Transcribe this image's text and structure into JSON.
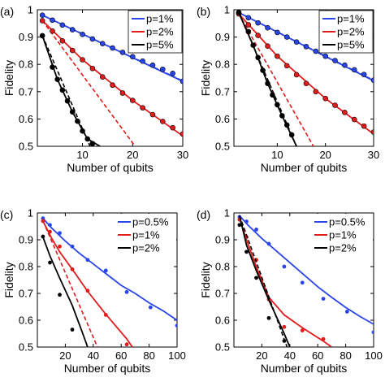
{
  "colors": {
    "blue": "#2a46e8",
    "red": "#e21b1b",
    "black": "#000000"
  },
  "chart_data": [
    {
      "panel_label": "(a)",
      "type": "line",
      "xlabel": "Number of qubits",
      "ylabel": "Fidelity",
      "xlim": [
        1,
        30
      ],
      "ylim": [
        0.5,
        1
      ],
      "xticks": [
        "10",
        "20",
        "30"
      ],
      "yticks": [
        "0.5",
        "0.6",
        "0.7",
        "0.8",
        "0.9",
        "1"
      ],
      "legend": {
        "position": "top-right",
        "entries": [
          "p=1%",
          "p=2%",
          "p=5%"
        ]
      },
      "series": [
        {
          "name": "p=1%",
          "color": "blue",
          "solid": [
            [
              2,
              0.98
            ],
            [
              30,
              0.738
            ]
          ],
          "dashed": [
            [
              2,
              0.98
            ],
            [
              30,
              0.74
            ]
          ],
          "points": [
            [
              2,
              0.98
            ],
            [
              4,
              0.962
            ],
            [
              6,
              0.944
            ],
            [
              8,
              0.927
            ],
            [
              10,
              0.91
            ],
            [
              12,
              0.893
            ],
            [
              14,
              0.876
            ],
            [
              16,
              0.86
            ],
            [
              18,
              0.844
            ],
            [
              20,
              0.828
            ],
            [
              22,
              0.812
            ],
            [
              24,
              0.797
            ],
            [
              26,
              0.782
            ],
            [
              28,
              0.767
            ],
            [
              30,
              0.738
            ]
          ]
        },
        {
          "name": "p=2%",
          "color": "red",
          "solid": [
            [
              2,
              0.96
            ],
            [
              10,
              0.817
            ],
            [
              20,
              0.668
            ],
            [
              30,
              0.538
            ]
          ],
          "dashed": [
            [
              2,
              0.96
            ],
            [
              20.5,
              0.5
            ]
          ],
          "points": [
            [
              2,
              0.96
            ],
            [
              4,
              0.922
            ],
            [
              6,
              0.886
            ],
            [
              8,
              0.851
            ],
            [
              10,
              0.817
            ],
            [
              12,
              0.785
            ],
            [
              14,
              0.754
            ],
            [
              16,
              0.724
            ],
            [
              18,
              0.695
            ],
            [
              20,
              0.668
            ],
            [
              22,
              0.641
            ],
            [
              24,
              0.616
            ],
            [
              26,
              0.591
            ],
            [
              28,
              0.568
            ],
            [
              30,
              0.545
            ]
          ]
        },
        {
          "name": "p=5%",
          "color": "black",
          "solid": [
            [
              2,
              0.905
            ],
            [
              5,
              0.745
            ],
            [
              8,
              0.626
            ],
            [
              11,
              0.527
            ],
            [
              13.5,
              0.5
            ]
          ],
          "dashed": [
            [
              2,
              0.905
            ],
            [
              11.5,
              0.5
            ]
          ],
          "points": [
            [
              2,
              0.905
            ],
            [
              4,
              0.79
            ],
            [
              5,
              0.745
            ],
            [
              6,
              0.706
            ],
            [
              7,
              0.666
            ],
            [
              8,
              0.626
            ],
            [
              9,
              0.592
            ],
            [
              10,
              0.556
            ],
            [
              11,
              0.527
            ],
            [
              12,
              0.51
            ]
          ]
        }
      ]
    },
    {
      "panel_label": "(b)",
      "type": "line",
      "xlabel": "Number of qubits",
      "ylabel": "Fidelity",
      "xlim": [
        1,
        30
      ],
      "ylim": [
        0.5,
        1
      ],
      "xticks": [
        "10",
        "20",
        "30"
      ],
      "yticks": [
        "0.5",
        "0.6",
        "0.7",
        "0.8",
        "0.9",
        "1"
      ],
      "legend": {
        "position": "top-right",
        "entries": [
          "p=1%",
          "p=2%",
          "p=5%"
        ]
      },
      "series": [
        {
          "name": "p=1%",
          "color": "blue",
          "solid": [
            [
              2,
              0.99
            ],
            [
              30,
              0.74
            ]
          ],
          "dashed": [
            [
              2,
              0.99
            ],
            [
              30,
              0.742
            ]
          ],
          "points": [
            [
              2,
              0.99
            ],
            [
              4,
              0.971
            ],
            [
              6,
              0.952
            ],
            [
              8,
              0.934
            ],
            [
              10,
              0.917
            ],
            [
              12,
              0.9
            ],
            [
              14,
              0.882
            ],
            [
              16,
              0.865
            ],
            [
              18,
              0.848
            ],
            [
              20,
              0.83
            ],
            [
              22,
              0.814
            ],
            [
              24,
              0.797
            ],
            [
              26,
              0.78
            ],
            [
              28,
              0.763
            ],
            [
              30,
              0.742
            ]
          ]
        },
        {
          "name": "p=2%",
          "color": "red",
          "solid": [
            [
              2,
              0.985
            ],
            [
              10,
              0.83
            ],
            [
              20,
              0.675
            ],
            [
              30,
              0.545
            ]
          ],
          "dashed": [
            [
              2,
              0.985
            ],
            [
              17.5,
              0.5
            ]
          ],
          "points": [
            [
              2,
              0.985
            ],
            [
              4,
              0.945
            ],
            [
              6,
              0.906
            ],
            [
              8,
              0.867
            ],
            [
              10,
              0.83
            ],
            [
              12,
              0.795
            ],
            [
              14,
              0.762
            ],
            [
              16,
              0.73
            ],
            [
              18,
              0.7
            ],
            [
              20,
              0.675
            ],
            [
              22,
              0.65
            ],
            [
              24,
              0.624
            ],
            [
              26,
              0.598
            ],
            [
              28,
              0.574
            ],
            [
              30,
              0.552
            ]
          ]
        },
        {
          "name": "p=5%",
          "color": "black",
          "solid": [
            [
              2,
              0.99
            ],
            [
              5,
              0.87
            ],
            [
              8,
              0.73
            ],
            [
              11,
              0.612
            ],
            [
              14,
              0.5
            ]
          ],
          "dashed": [
            [
              2,
              0.99
            ],
            [
              14,
              0.5
            ]
          ],
          "points": [
            [
              2,
              0.99
            ],
            [
              4,
              0.92
            ],
            [
              5,
              0.87
            ],
            [
              6,
              0.825
            ],
            [
              7,
              0.778
            ],
            [
              8,
              0.73
            ],
            [
              9,
              0.688
            ],
            [
              10,
              0.652
            ],
            [
              11,
              0.612
            ],
            [
              12,
              0.578
            ],
            [
              13,
              0.542
            ]
          ]
        }
      ]
    },
    {
      "panel_label": "(c)",
      "type": "line",
      "xlabel": "Number of qubits",
      "ylabel": "Fidelity",
      "xlim": [
        0,
        100
      ],
      "ylim": [
        0.5,
        1
      ],
      "xticks": [
        "20",
        "40",
        "60",
        "80",
        "100"
      ],
      "yticks": [
        "0.5",
        "0.6",
        "0.7",
        "0.8",
        "0.9",
        "1"
      ],
      "legend": {
        "position": "top-right",
        "entries": [
          "p=0.5%",
          "p=1%",
          "p=2%"
        ]
      },
      "series": [
        {
          "name": "p=0.5%",
          "color": "blue",
          "solid": [
            [
              4,
              0.98
            ],
            [
              10,
              0.945
            ],
            [
              20,
              0.895
            ],
            [
              30,
              0.85
            ],
            [
              40,
              0.81
            ],
            [
              50,
              0.77
            ],
            [
              60,
              0.73
            ],
            [
              70,
              0.7
            ],
            [
              80,
              0.665
            ],
            [
              90,
              0.635
            ],
            [
              100,
              0.6
            ]
          ],
          "points": [
            [
              4,
              0.98
            ],
            [
              9,
              0.955
            ],
            [
              16,
              0.925
            ],
            [
              25,
              0.875
            ],
            [
              36,
              0.825
            ],
            [
              49,
              0.785
            ],
            [
              64,
              0.705
            ],
            [
              81,
              0.648
            ],
            [
              100,
              0.58
            ]
          ]
        },
        {
          "name": "p=1%",
          "color": "red",
          "solid": [
            [
              4,
              0.97
            ],
            [
              10,
              0.908
            ],
            [
              16,
              0.855
            ],
            [
              25,
              0.79
            ],
            [
              36,
              0.708
            ],
            [
              49,
              0.622
            ],
            [
              64,
              0.53
            ],
            [
              68,
              0.5
            ]
          ],
          "dashed": [
            [
              4,
              0.97
            ],
            [
              43,
              0.5
            ]
          ],
          "points": [
            [
              4,
              0.97
            ],
            [
              9,
              0.93
            ],
            [
              16,
              0.875
            ],
            [
              25,
              0.79
            ],
            [
              36,
              0.71
            ],
            [
              49,
              0.62
            ],
            [
              64,
              0.51
            ]
          ]
        },
        {
          "name": "p=2%",
          "color": "black",
          "solid": [
            [
              4,
              0.91
            ],
            [
              9,
              0.84
            ],
            [
              16,
              0.757
            ],
            [
              25,
              0.655
            ],
            [
              32,
              0.558
            ],
            [
              36,
              0.5
            ]
          ],
          "points": [
            [
              4,
              0.912
            ],
            [
              9,
              0.815
            ],
            [
              16,
              0.695
            ],
            [
              25,
              0.565
            ]
          ]
        }
      ]
    },
    {
      "panel_label": "(d)",
      "type": "line",
      "xlabel": "Number of qubits",
      "ylabel": "Fidelity",
      "xlim": [
        0,
        100
      ],
      "ylim": [
        0.5,
        1
      ],
      "xticks": [
        "20",
        "40",
        "60",
        "80",
        "100"
      ],
      "yticks": [
        "0.5",
        "0.6",
        "0.7",
        "0.8",
        "0.9",
        "1"
      ],
      "legend": {
        "position": "top-right",
        "entries": [
          "p=0.5%",
          "p=1%",
          "p=2%"
        ]
      },
      "series": [
        {
          "name": "p=0.5%",
          "color": "blue",
          "solid": [
            [
              4,
              0.99
            ],
            [
              10,
              0.955
            ],
            [
              20,
              0.905
            ],
            [
              30,
              0.86
            ],
            [
              40,
              0.815
            ],
            [
              50,
              0.77
            ],
            [
              60,
              0.725
            ],
            [
              70,
              0.685
            ],
            [
              80,
              0.648
            ],
            [
              90,
              0.615
            ],
            [
              100,
              0.585
            ]
          ],
          "points": [
            [
              4,
              0.985
            ],
            [
              9,
              0.968
            ],
            [
              16,
              0.938
            ],
            [
              25,
              0.885
            ],
            [
              36,
              0.8
            ],
            [
              49,
              0.74
            ],
            [
              64,
              0.68
            ],
            [
              81,
              0.632
            ],
            [
              100,
              0.555
            ]
          ]
        },
        {
          "name": "p=1%",
          "color": "red",
          "solid": [
            [
              4,
              0.98
            ],
            [
              9,
              0.9
            ],
            [
              16,
              0.8
            ],
            [
              25,
              0.685
            ],
            [
              36,
              0.62
            ],
            [
              49,
              0.572
            ],
            [
              64,
              0.522
            ],
            [
              70,
              0.5
            ]
          ],
          "points": [
            [
              4,
              0.975
            ],
            [
              9,
              0.91
            ],
            [
              16,
              0.825
            ],
            [
              25,
              0.678
            ],
            [
              36,
              0.575
            ],
            [
              49,
              0.562
            ],
            [
              64,
              0.53
            ]
          ]
        },
        {
          "name": "p=2%",
          "color": "black",
          "solid": [
            [
              4,
              0.99
            ],
            [
              9,
              0.88
            ],
            [
              16,
              0.785
            ],
            [
              25,
              0.675
            ],
            [
              36,
              0.55
            ],
            [
              40,
              0.5
            ]
          ],
          "dashed": [
            [
              4,
              0.99
            ],
            [
              38,
              0.5
            ]
          ],
          "points": [
            [
              4,
              0.955
            ],
            [
              9,
              0.855
            ],
            [
              16,
              0.758
            ],
            [
              25,
              0.608
            ],
            [
              36,
              0.523
            ]
          ]
        }
      ]
    }
  ]
}
